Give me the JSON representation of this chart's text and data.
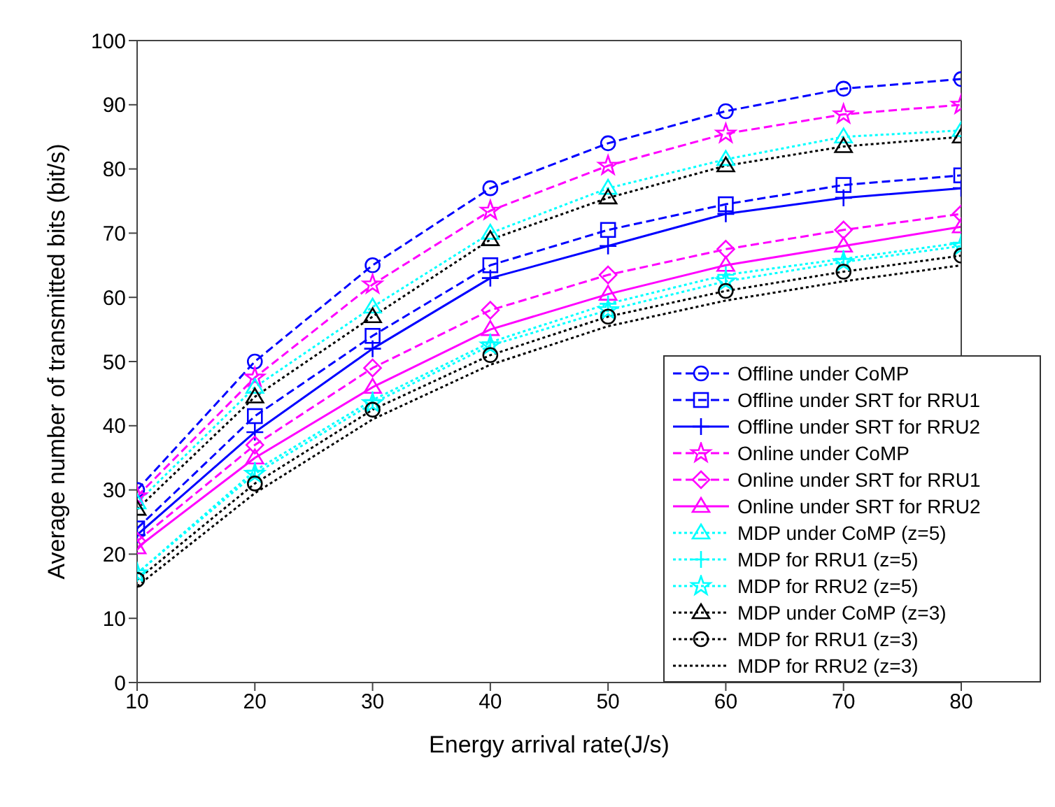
{
  "chart_data": {
    "type": "line",
    "xlabel": "Energy arrival rate(J/s)",
    "ylabel": "Average number of transmitted bits (bit/s)",
    "x": [
      10,
      20,
      30,
      40,
      50,
      60,
      70,
      80
    ],
    "xlim": [
      10,
      80
    ],
    "xticks": [
      10,
      20,
      30,
      40,
      50,
      60,
      70,
      80
    ],
    "ylim": [
      0,
      100
    ],
    "yticks": [
      0,
      10,
      20,
      30,
      40,
      50,
      60,
      70,
      80,
      90,
      100
    ],
    "legend": "bottom right",
    "series": [
      {
        "name": "Offline under CoMP",
        "color": "#0000ff",
        "marker": "circle",
        "line_style": "dashed",
        "values": [
          30,
          50,
          65,
          77,
          84,
          89,
          92.5,
          94
        ]
      },
      {
        "name": "Offline under SRT for RRU1",
        "color": "#0000ff",
        "marker": "square",
        "line_style": "dashed",
        "values": [
          24,
          41.5,
          54,
          65,
          70.5,
          74.5,
          77.5,
          79
        ]
      },
      {
        "name": "Offline under SRT for RRU2",
        "color": "#0000ff",
        "marker": "cross",
        "line_style": "solid",
        "values": [
          23,
          39,
          52,
          63,
          68,
          73,
          75.5,
          77
        ]
      },
      {
        "name": "Online under CoMP",
        "color": "#ff00ff",
        "marker": "star",
        "line_style": "dashed",
        "values": [
          29,
          47.5,
          62,
          73.5,
          80.5,
          85.5,
          88.5,
          90
        ]
      },
      {
        "name": "Online under SRT for RRU1",
        "color": "#ff00ff",
        "marker": "diamond",
        "line_style": "dashed",
        "values": [
          22,
          37,
          49,
          58,
          63.5,
          67.5,
          70.5,
          73
        ]
      },
      {
        "name": "Online under SRT for RRU2",
        "color": "#ff00ff",
        "marker": "triangle",
        "line_style": "solid",
        "values": [
          21,
          35,
          46,
          55,
          60.5,
          65,
          68,
          71
        ]
      },
      {
        "name": "MDP under CoMP (z=5)",
        "color": "#00ffff",
        "marker": "triangle",
        "line_style": "dotted",
        "values": [
          28,
          46,
          58.5,
          70,
          77,
          81.5,
          85,
          86
        ]
      },
      {
        "name": "MDP for RRU1 (z=5)",
        "color": "#00ffff",
        "marker": "cross",
        "line_style": "dotted",
        "values": [
          17,
          33,
          44,
          53,
          59,
          63.5,
          66,
          68.5
        ]
      },
      {
        "name": "MDP for RRU2 (z=5)",
        "color": "#00ffff",
        "marker": "star",
        "line_style": "dotted",
        "values": [
          17,
          32.5,
          43.5,
          52.5,
          58,
          62.5,
          65.5,
          68
        ]
      },
      {
        "name": "MDP under CoMP (z=3)",
        "color": "#000000",
        "marker": "triangle",
        "line_style": "dotted",
        "values": [
          27,
          44.5,
          57,
          69,
          75.5,
          80.5,
          83.5,
          85
        ]
      },
      {
        "name": "MDP for RRU1 (z=3)",
        "color": "#000000",
        "marker": "circle",
        "line_style": "dotted",
        "values": [
          16,
          31,
          42.5,
          51,
          57,
          61,
          64,
          66.5
        ]
      },
      {
        "name": "MDP for RRU2 (z=3)",
        "color": "#000000",
        "marker": "none",
        "line_style": "dotted",
        "values": [
          15,
          29.5,
          41,
          49.5,
          55.5,
          59.5,
          62.5,
          65
        ]
      }
    ]
  }
}
